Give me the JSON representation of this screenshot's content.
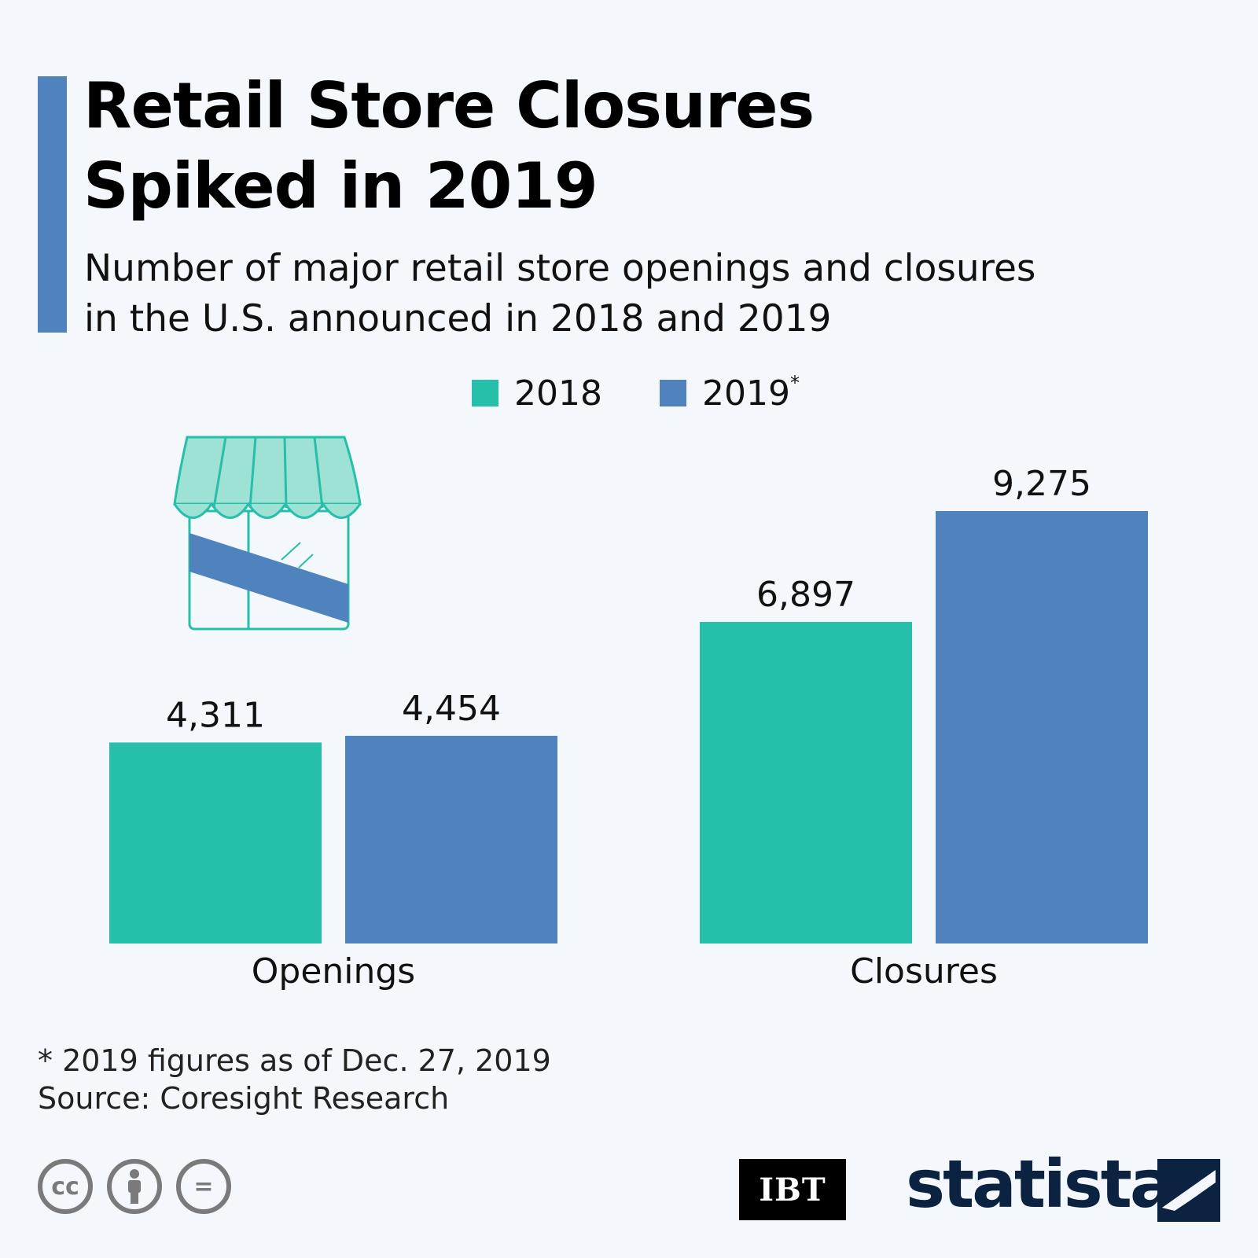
{
  "title_line1": "Retail Store Closures",
  "title_line2": "Spiked in 2019",
  "subtitle_line1": "Number of major retail store openings and closures",
  "subtitle_line2": "in the U.S. announced in 2018 and 2019",
  "legend": {
    "series1": "2018",
    "series2": "2019",
    "series2_marker": "*"
  },
  "footnote": "* 2019 figures as of Dec. 27, 2019",
  "source": "Source: Coresight Research",
  "icons": [
    "storefront-icon",
    "cc-icon",
    "by-icon",
    "nd-icon"
  ],
  "cc_labels": {
    "cc": "cc",
    "nd": "="
  },
  "logos": {
    "ibt": "IBT",
    "statista": "statista"
  },
  "colors": {
    "series1": "#26bfa9",
    "series2": "#5082bd",
    "accent": "#5082bd",
    "background": "#f4f8fc"
  },
  "chart_data": {
    "type": "bar",
    "title": "Retail Store Closures Spiked in 2019",
    "subtitle": "Number of major retail store openings and closures in the U.S. announced in 2018 and 2019",
    "categories": [
      "Openings",
      "Closures"
    ],
    "series": [
      {
        "name": "2018",
        "values": [
          4311,
          6897
        ],
        "labels": [
          "4,311",
          "6,897"
        ]
      },
      {
        "name": "2019*",
        "values": [
          4454,
          9275
        ],
        "labels": [
          "4,454",
          "9,275"
        ]
      }
    ],
    "ylim": [
      0,
      9275
    ],
    "grid": false,
    "legend_position": "top-center"
  }
}
